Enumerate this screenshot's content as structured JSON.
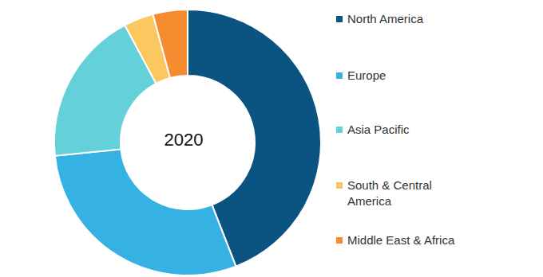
{
  "chart_data": {
    "type": "pie",
    "title": "2020",
    "categories": [
      "North America",
      "Europe",
      "Asia Pacific",
      "South & Central America",
      "Middle East & Africa"
    ],
    "values": [
      44.1,
      29.3,
      18.8,
      3.6,
      4.2
    ],
    "colors": [
      "#0b5381",
      "#36b1e3",
      "#64d0d9",
      "#fcc75f",
      "#f68b30"
    ],
    "legend": "right"
  }
}
